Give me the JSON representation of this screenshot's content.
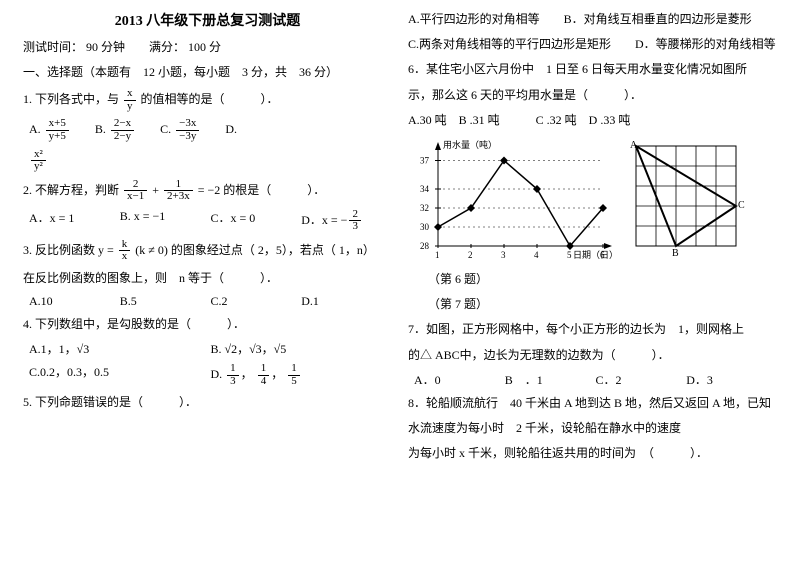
{
  "title": "2013 八年级下册总复习测试题",
  "meta": "测试时间： 90 分钟　　满分： 100 分",
  "section": "一、选择题（本题有　12 小题，每小题　3 分，共　36 分）",
  "q1": {
    "stem_a": "1. 下列各式中，与 ",
    "stem_b": " 的值相等的是（　　　）．",
    "frac": {
      "num": "x",
      "den": "y"
    },
    "A_n": "x+5",
    "A_d": "y+5",
    "B_n": "2−x",
    "B_d": "2−y",
    "C_n": "−3x",
    "C_d": "−3y",
    "D_n": "x²",
    "D_d": "y²"
  },
  "q2": {
    "stem_a": "2. 不解方程，判断 ",
    "stem_b": " 的根是（　　　）．",
    "eq_l_n": "2",
    "eq_l_d": "x−1",
    "eq_r_n": "1",
    "eq_r_d": "2+3x",
    "eq_tail": "= −2",
    "A": "A．x = 1",
    "B": "B. x = −1",
    "C": "C．x = 0",
    "D_pre": "D．x = −",
    "D_n": "2",
    "D_d": "3"
  },
  "q3": {
    "stem_a": "3. 反比例函数 ",
    "fn_pre": "y = ",
    "fn_n": "k",
    "fn_d": "x",
    "fn_post": "(k ≠ 0)",
    "stem_b": " 的图象经过点（ 2，5），若点（ 1，n）",
    "line2": "在反比例函数的图象上，则　n 等于（　　　）．",
    "A": "A.10",
    "B": "B.5",
    "C": "C.2",
    "D": "D.1"
  },
  "q4": {
    "stem": "4. 下列数组中，是勾股数的是（　　　）．",
    "A": "A.1，1，√3",
    "B": "B. √2，√3，√5",
    "C": "C.0.2，0.3，0.5",
    "D_pre": "D. ",
    "D1n": "1",
    "D1d": "3",
    "D2n": "1",
    "D2d": "4",
    "D3n": "1",
    "D3d": "5"
  },
  "q5": {
    "stem": "5. 下列命题错误的是（　　　）．"
  },
  "q5opts": [
    "A.平行四边形的对角相等　　B．对角线互相垂直的四边形是菱形",
    "C.两条对角线相等的平行四边形是矩形　　D．等腰梯形的对角线相等"
  ],
  "q6": {
    "l1": "6．某住宅小区六月份中　1 日至 6 日每天用水量变化情况如图所",
    "l2": "示，那么这 6 天的平均用水量是（　　　）．",
    "opts": "A.30 吨　B .31 吨　　　C .32 吨　D .33 吨"
  },
  "chart": {
    "type": "line",
    "xlabel": "日期（日）",
    "ylabel": "用水量（吨）",
    "x": [
      1,
      2,
      3,
      4,
      5,
      6
    ],
    "y": [
      30,
      32,
      37,
      34,
      28,
      32
    ],
    "yticks": [
      28,
      30,
      32,
      34,
      37
    ],
    "bg": "#ffffff",
    "line_color": "#000000",
    "marker": "diamond"
  },
  "triangle_fig": {
    "labels": {
      "A": "A",
      "B": "B",
      "C": "C"
    },
    "grid_color": "#000000"
  },
  "caps": {
    "c6": "（第 6 题）",
    "c7": "（第 7 题）"
  },
  "q7": {
    "l1": "7．如图，正方形网格中，每个小正方形的边长为　1，则网格上",
    "l2": "的△ ABC中，边长为无理数的边数为（　　　）．",
    "A": "A．0",
    "B": "B　．1",
    "C": "C．2",
    "D": "D．3"
  },
  "q8": {
    "l1": "8．轮船顺流航行　40 千米由 A 地到达 B 地，然后又返回 A 地，已知",
    "l2": "水流速度为每小时　2 千米，设轮船在静水中的速度",
    "l3": "为每小时 x 千米，则轮船往返共用的时间为　（　　　）．"
  }
}
